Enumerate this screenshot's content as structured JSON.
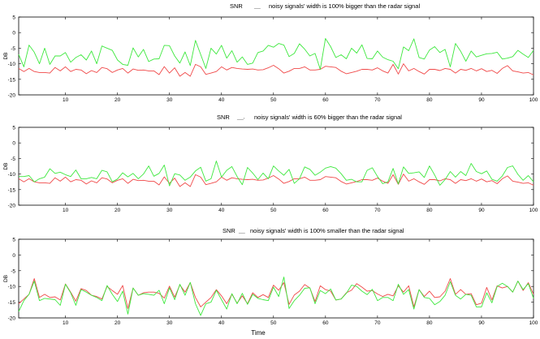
{
  "colors": {
    "radar": "#f04848",
    "noisy": "#3ee83e",
    "axis": "#000000"
  },
  "chart_data": [
    {
      "type": "line",
      "title_prefix": "SNR",
      "legend_mark": "__",
      "title": "noisy signals' width is 100% bigger than the radar signal",
      "xlabel": "",
      "ylabel": "DB",
      "xlim": [
        1,
        100
      ],
      "ylim": [
        -20,
        5
      ],
      "xticks": [
        10,
        20,
        30,
        40,
        50,
        60,
        70,
        80,
        90,
        100
      ],
      "yticks": [
        5,
        0,
        -5,
        -10,
        -15,
        -20
      ],
      "series": [
        {
          "name": "red",
          "color": "#f04848",
          "values": [
            -11.5,
            -12.5,
            -11.5,
            -12.5,
            -12.8,
            -12.8,
            -13,
            -11.2,
            -12.3,
            -11,
            -12.5,
            -11.8,
            -12,
            -13.2,
            -12.2,
            -12.8,
            -11.2,
            -11.6,
            -12.8,
            -12,
            -11.5,
            -13,
            -11.7,
            -12.1,
            -12,
            -12.3,
            -12.3,
            -13.5,
            -10.9,
            -13,
            -11.3,
            -14,
            -12.8,
            -14,
            -10.2,
            -11,
            -13.4,
            -13,
            -12.5,
            -11,
            -12,
            -11.2,
            -11.5,
            -11.7,
            -11.8,
            -11.7,
            -12,
            -11.9,
            -11.3,
            -10.5,
            -11.6,
            -13,
            -12.4,
            -11.5,
            -11.5,
            -11,
            -12,
            -12,
            -11.8,
            -10.8,
            -11,
            -11.2,
            -12.4,
            -13.2,
            -12.8,
            -12.4,
            -11.8,
            -11.8,
            -12,
            -11.3,
            -12.3,
            -13,
            -10.2,
            -13.3,
            -10,
            -12.3,
            -11.5,
            -12.5,
            -13.3,
            -11.8,
            -11.8,
            -12.2,
            -11.5,
            -11.8,
            -13,
            -11.8,
            -12.1,
            -11.5,
            -12.3,
            -11.6,
            -12.5,
            -12.1,
            -13.1,
            -11.5,
            -10.6,
            -12.3,
            -12.6,
            -13,
            -12.8,
            -13.6
          ]
        },
        {
          "name": "green",
          "color": "#3ee83e",
          "values": [
            -7,
            -11,
            -4,
            -6.3,
            -10,
            -5,
            -10.2,
            -7.5,
            -7.5,
            -6.4,
            -9.5,
            -8,
            -7.1,
            -8.8,
            -5.9,
            -10,
            -4.3,
            -5,
            -5.7,
            -8.8,
            -10.2,
            -10.5,
            -4.9,
            -7.8,
            -5.4,
            -9.3,
            -8.5,
            -8.4,
            -4.1,
            -4.2,
            -7.5,
            -9.8,
            -6.2,
            -10.6,
            -2.5,
            -7,
            -11.5,
            -5,
            -6.9,
            -4.1,
            -8.2,
            -5.8,
            -9.5,
            -7.8,
            -10.2,
            -9.8,
            -6.4,
            -5.9,
            -4.1,
            -4.7,
            -3.5,
            -4,
            -7.7,
            -6.7,
            -3.6,
            -5.3,
            -7.5,
            -6.7,
            -11.8,
            -1.9,
            -4.5,
            -8,
            -7.1,
            -8.4,
            -5,
            -6.6,
            -3.9,
            -8.3,
            -8.4,
            -5.9,
            -7.9,
            -8.7,
            -9.2,
            -11.6,
            -4.6,
            -5.8,
            -2,
            -8,
            -8.5,
            -5.6,
            -4.5,
            -6.4,
            -5.4,
            -11,
            -3.5,
            -6,
            -9.2,
            -5.9,
            -7.8,
            -7.3,
            -6.8,
            -6.7,
            -6.3,
            -8.5,
            -8.2,
            -7.7,
            -5.7,
            -6.9,
            -8,
            -5.7
          ]
        }
      ]
    },
    {
      "type": "line",
      "title_prefix": "SNR",
      "legend_mark": "__,",
      "title": "noisy signals' width is 60% bigger than the radar signal",
      "xlabel": "",
      "ylabel": "DB",
      "xlim": [
        1,
        100
      ],
      "ylim": [
        -20,
        5
      ],
      "xticks": [
        10,
        20,
        30,
        40,
        50,
        60,
        70,
        80,
        90,
        100
      ],
      "yticks": [
        5,
        0,
        -5,
        -10,
        -15,
        -20
      ],
      "series": [
        {
          "name": "red",
          "color": "#f04848",
          "values": [
            -11.5,
            -12.5,
            -11.5,
            -12.5,
            -12.8,
            -12.8,
            -13,
            -11.2,
            -12.3,
            -11,
            -12.5,
            -11.8,
            -12,
            -13.2,
            -12.2,
            -12.8,
            -11.2,
            -11.6,
            -12.8,
            -12,
            -11.5,
            -13,
            -11.7,
            -12.1,
            -12,
            -12.3,
            -12.3,
            -13.5,
            -10.9,
            -13,
            -11.3,
            -14,
            -12.8,
            -14,
            -10.2,
            -11,
            -13.4,
            -13,
            -12.5,
            -11,
            -12,
            -11.2,
            -11.5,
            -11.7,
            -11.8,
            -11.7,
            -12,
            -11.9,
            -11.3,
            -10.5,
            -11.6,
            -13,
            -12.4,
            -11.5,
            -11.5,
            -11,
            -12,
            -12,
            -11.8,
            -10.8,
            -11,
            -11.2,
            -12.4,
            -13.2,
            -12.8,
            -12.4,
            -11.8,
            -11.8,
            -12,
            -11.3,
            -12.3,
            -13,
            -10.2,
            -13.3,
            -10,
            -12.3,
            -11.5,
            -12.5,
            -13.3,
            -11.8,
            -11.8,
            -12.2,
            -11.5,
            -11.8,
            -13,
            -11.8,
            -12.1,
            -11.5,
            -12.3,
            -11.6,
            -12.5,
            -12.1,
            -13.1,
            -11.5,
            -10.6,
            -12.3,
            -12.6,
            -13,
            -12.8,
            -13.6
          ]
        },
        {
          "name": "green",
          "color": "#3ee83e",
          "values": [
            -10.8,
            -10.8,
            -10.5,
            -12.5,
            -11.5,
            -11,
            -8.3,
            -9.8,
            -9.4,
            -10.2,
            -10.8,
            -8.7,
            -11.5,
            -11.5,
            -11.1,
            -11.5,
            -8.8,
            -9.3,
            -12.5,
            -11.6,
            -9.6,
            -10.9,
            -9.8,
            -11.5,
            -10,
            -7.4,
            -10.7,
            -9.8,
            -7.1,
            -13.8,
            -9.9,
            -10.3,
            -12,
            -11,
            -9,
            -7.8,
            -12.3,
            -11.5,
            -5.8,
            -11,
            -8.8,
            -7.6,
            -10.8,
            -13.4,
            -7.9,
            -9.7,
            -11.8,
            -9.7,
            -11.5,
            -7.4,
            -9,
            -10.4,
            -8.5,
            -13,
            -11.5,
            -7.7,
            -8.5,
            -10.4,
            -9.4,
            -8.1,
            -7.6,
            -8.1,
            -9.9,
            -12,
            -11.7,
            -12.5,
            -12.5,
            -8.8,
            -8,
            -10.8,
            -13.1,
            -12.5,
            -8.2,
            -13.2,
            -7.7,
            -9.8,
            -9.6,
            -9.3,
            -11.1,
            -7.4,
            -10.3,
            -13.6,
            -11.8,
            -9.2,
            -11,
            -9.2,
            -10.5,
            -6.6,
            -9.2,
            -9.9,
            -9,
            -11.7,
            -12.3,
            -10.6,
            -7.9,
            -7.4,
            -10.1,
            -12,
            -10.5,
            -12.5
          ]
        }
      ]
    },
    {
      "type": "line",
      "title_prefix": "SNR",
      "legend_mark": "__",
      "title": "noisy signals' width is 100% smaller than the radar signal",
      "xlabel": "Time",
      "ylabel": "DB",
      "xlim": [
        1,
        100
      ],
      "ylim": [
        -20,
        5
      ],
      "xticks": [
        10,
        20,
        30,
        40,
        50,
        60,
        70,
        80,
        90,
        100
      ],
      "yticks": [
        5,
        0,
        -5,
        -10,
        -15,
        -20
      ],
      "series": [
        {
          "name": "red",
          "color": "#f04848",
          "values": [
            -15.5,
            -14,
            -12.5,
            -7.5,
            -13.5,
            -12.5,
            -13.5,
            -13.3,
            -14.3,
            -9.2,
            -11.8,
            -14.7,
            -10.7,
            -11.3,
            -12.8,
            -13.2,
            -14,
            -10,
            -11.3,
            -12.5,
            -9.7,
            -17,
            -10.5,
            -12.8,
            -12,
            -11.8,
            -11.8,
            -12.2,
            -13.7,
            -9.9,
            -13.4,
            -9.5,
            -11.8,
            -8.8,
            -13.5,
            -16.5,
            -15,
            -13.5,
            -11,
            -13,
            -15.5,
            -12.5,
            -15.3,
            -13,
            -15.5,
            -12,
            -13.5,
            -12.6,
            -13.5,
            -9.6,
            -11.2,
            -8.8,
            -15.7,
            -12.7,
            -11.5,
            -9.4,
            -10.5,
            -14.8,
            -9.8,
            -11,
            -11.5,
            -14.3,
            -14,
            -12,
            -11.2,
            -9.1,
            -10.2,
            -11.5,
            -11.3,
            -12.4,
            -13.2,
            -12.5,
            -13,
            -9.8,
            -11.8,
            -9.8,
            -16.5,
            -11,
            -13.2,
            -11.5,
            -13.5,
            -13.3,
            -11.5,
            -7.5,
            -12.5,
            -11,
            -12.5,
            -12.3,
            -15.8,
            -15.3,
            -10.3,
            -14.3,
            -9.8,
            -10.5,
            -10,
            -11.8,
            -8.3,
            -11.3,
            -8.8,
            -12.5
          ]
        },
        {
          "name": "green",
          "color": "#3ee83e",
          "values": [
            -18,
            -14.5,
            -12.5,
            -8.3,
            -14.5,
            -13.8,
            -14,
            -14.2,
            -16,
            -9.3,
            -12,
            -16,
            -11,
            -11.8,
            -12.8,
            -13.5,
            -14.5,
            -9.7,
            -12.5,
            -14.8,
            -11.5,
            -18.8,
            -10.5,
            -12.8,
            -12.3,
            -12.5,
            -12.8,
            -11.2,
            -15.5,
            -10.4,
            -14.2,
            -9.3,
            -12.8,
            -8.7,
            -15.5,
            -19.2,
            -15.5,
            -15,
            -11.2,
            -14.2,
            -17.2,
            -12.3,
            -15.5,
            -12.2,
            -15.7,
            -12.5,
            -13.8,
            -14.2,
            -14.5,
            -10.2,
            -13.2,
            -7,
            -17,
            -14.5,
            -12.8,
            -10.6,
            -10.4,
            -15.5,
            -11.3,
            -12.3,
            -10.8,
            -14.3,
            -14,
            -12.2,
            -9.6,
            -10,
            -11.5,
            -12.6,
            -10.9,
            -14.5,
            -13.5,
            -13.5,
            -14.5,
            -9.3,
            -12.5,
            -11,
            -17.2,
            -11,
            -13.5,
            -13.8,
            -15.8,
            -14.8,
            -12.8,
            -8.5,
            -12.8,
            -14,
            -12.5,
            -12.8,
            -16.5,
            -16.5,
            -12,
            -15.2,
            -10,
            -9,
            -10,
            -11.8,
            -8.3,
            -11,
            -9.1,
            -13.8
          ]
        }
      ]
    }
  ]
}
